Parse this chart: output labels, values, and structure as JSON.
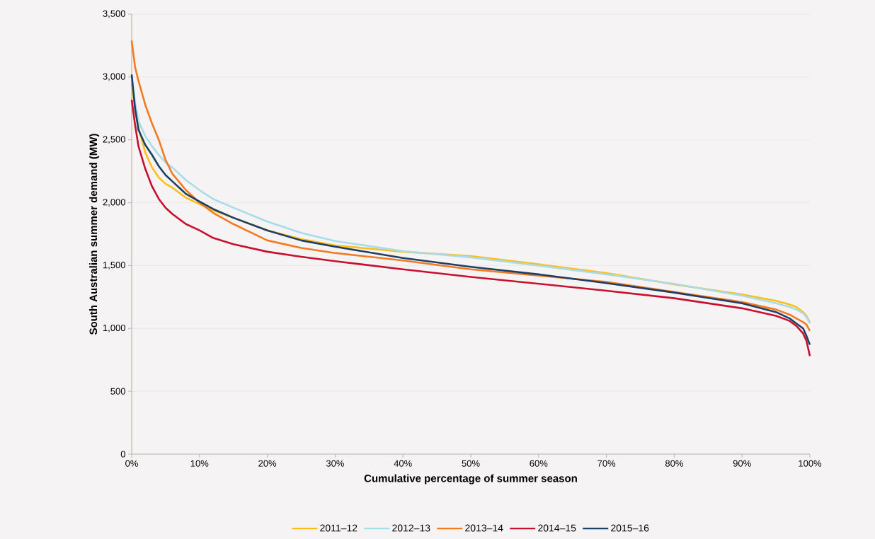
{
  "chart_data": {
    "type": "line",
    "xlabel": "Cumulative percentage of summer season",
    "ylabel": "South Australian summer demand (MW)",
    "x": [
      0,
      0.5,
      1,
      2,
      3,
      4,
      5,
      6,
      8,
      10,
      12,
      15,
      20,
      25,
      30,
      40,
      50,
      60,
      70,
      80,
      90,
      95,
      97,
      98,
      99,
      99.5,
      100
    ],
    "series": [
      {
        "name": "2011–12",
        "color": "#fbbf1a",
        "values": [
          2950,
          2750,
          2600,
          2400,
          2280,
          2200,
          2150,
          2120,
          2040,
          1990,
          1940,
          1880,
          1780,
          1710,
          1660,
          1610,
          1575,
          1510,
          1440,
          1350,
          1270,
          1220,
          1190,
          1170,
          1130,
          1100,
          1050
        ]
      },
      {
        "name": "2012–13",
        "color": "#a8dcea",
        "values": [
          3000,
          2800,
          2650,
          2530,
          2450,
          2380,
          2320,
          2280,
          2180,
          2100,
          2030,
          1960,
          1850,
          1760,
          1695,
          1615,
          1565,
          1500,
          1430,
          1355,
          1260,
          1200,
          1170,
          1150,
          1120,
          1090,
          1040
        ]
      },
      {
        "name": "2013–14",
        "color": "#f47a20",
        "values": [
          3290,
          3080,
          2970,
          2780,
          2630,
          2500,
          2340,
          2230,
          2100,
          2000,
          1920,
          1830,
          1700,
          1640,
          1600,
          1540,
          1470,
          1420,
          1370,
          1290,
          1210,
          1150,
          1110,
          1080,
          1050,
          1030,
          980
        ]
      },
      {
        "name": "2014–15",
        "color": "#c8102e",
        "values": [
          2820,
          2620,
          2450,
          2270,
          2130,
          2030,
          1960,
          1910,
          1830,
          1780,
          1720,
          1670,
          1610,
          1570,
          1535,
          1470,
          1410,
          1355,
          1300,
          1240,
          1160,
          1100,
          1060,
          1020,
          960,
          900,
          780
        ]
      },
      {
        "name": "2015–16",
        "color": "#1d3f66",
        "values": [
          3020,
          2750,
          2580,
          2460,
          2380,
          2290,
          2220,
          2170,
          2070,
          2010,
          1950,
          1880,
          1780,
          1700,
          1650,
          1560,
          1490,
          1430,
          1360,
          1285,
          1200,
          1130,
          1080,
          1040,
          1000,
          940,
          870
        ]
      }
    ],
    "xlim": [
      0,
      100
    ],
    "xticks": [
      {
        "value": 0,
        "label": "0%"
      },
      {
        "value": 10,
        "label": "10%"
      },
      {
        "value": 20,
        "label": "20%"
      },
      {
        "value": 30,
        "label": "30%"
      },
      {
        "value": 40,
        "label": "40%"
      },
      {
        "value": 50,
        "label": "50%"
      },
      {
        "value": 60,
        "label": "60%"
      },
      {
        "value": 70,
        "label": "70%"
      },
      {
        "value": 80,
        "label": "80%"
      },
      {
        "value": 90,
        "label": "90%"
      },
      {
        "value": 100,
        "label": "100%"
      }
    ],
    "ylim": [
      0,
      3500
    ],
    "yticks": [
      0,
      {
        "value": 500,
        "label": "500"
      },
      {
        "value": 1000,
        "label": "1,000"
      },
      {
        "value": 1500,
        "label": "1,500"
      },
      {
        "value": 2000,
        "label": "2,000"
      },
      {
        "value": 2500,
        "label": "2,500"
      },
      {
        "value": 3000,
        "label": "3,000"
      },
      {
        "value": 3500,
        "label": "3,500"
      }
    ],
    "grid": "y",
    "legend": "bottom",
    "marker": "none",
    "line_style": "solid"
  }
}
